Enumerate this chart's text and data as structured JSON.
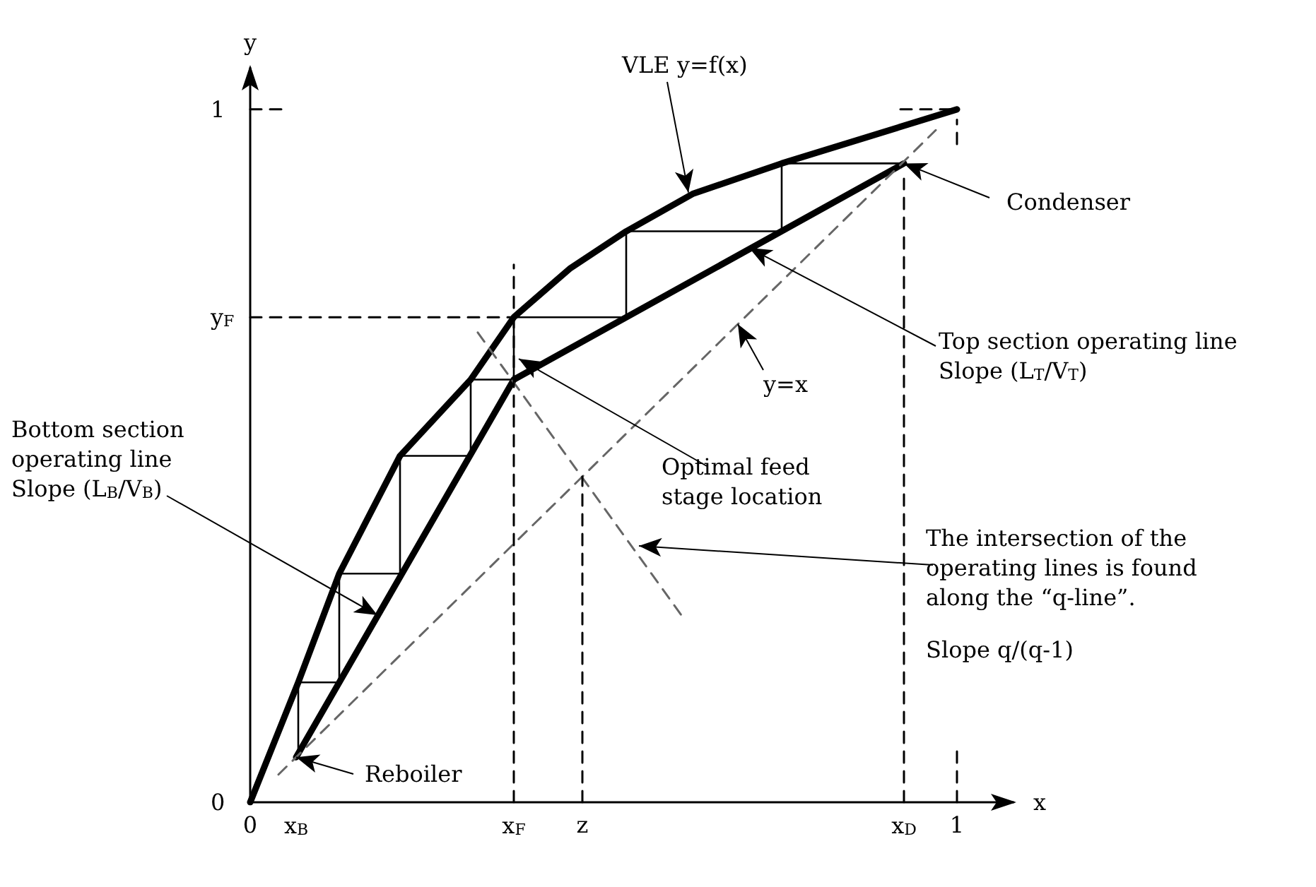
{
  "chart_data": {
    "type": "line",
    "xlabel": "x",
    "ylabel": "y",
    "xlim": [
      0,
      1.08
    ],
    "ylim": [
      0,
      1.06
    ],
    "xticks": [
      {
        "value": 0,
        "label": "0"
      },
      {
        "value": 0.065,
        "label": "x$_{B}$"
      },
      {
        "value": 0.373,
        "label": "x$_{F}$"
      },
      {
        "value": 0.47,
        "label": "z"
      },
      {
        "value": 0.925,
        "label": "x$_{D}$"
      },
      {
        "value": 1,
        "label": "1"
      }
    ],
    "yticks": [
      {
        "value": 0,
        "label": "0"
      },
      {
        "value": 0.7,
        "label": "y$_{F}$"
      },
      {
        "value": 1,
        "label": "1"
      }
    ],
    "grid": false,
    "marker": "none",
    "series": [
      {
        "color": "#000000",
        "line_style": "solid",
        "x": [
          0,
          0.068,
          0.126,
          0.212,
          0.312,
          0.373,
          0.452,
          0.532,
          0.626,
          0.752,
          1
        ],
        "values": [
          0,
          0.173,
          0.33,
          0.5,
          0.61,
          0.7,
          0.77,
          0.824,
          0.878,
          0.922,
          1
        ]
      },
      {
        "color": "#000000",
        "line_style": "solid",
        "x": [
          0.065,
          0.373
        ],
        "values": [
          0.065,
          0.61
        ]
      },
      {
        "color": "#000000",
        "line_style": "solid",
        "x": [
          0.373,
          0.925
        ],
        "values": [
          0.61,
          0.922
        ]
      },
      {
        "color": "#000000",
        "line_style": "solid",
        "x": [
          0.925,
          0.752,
          0.752,
          0.532,
          0.532,
          0.373,
          0.373,
          0.312,
          0.312,
          0.212,
          0.212,
          0.126,
          0.126,
          0.068,
          0.068
        ],
        "values": [
          0.922,
          0.922,
          0.824,
          0.824,
          0.7,
          0.7,
          0.61,
          0.61,
          0.5,
          0.5,
          0.33,
          0.33,
          0.173,
          0.173,
          0.065
        ]
      },
      {
        "color": "#666666",
        "line_style": "dashed",
        "x": [
          0.04,
          0.97
        ],
        "values": [
          0.04,
          0.97
        ]
      },
      {
        "color": "#666666",
        "line_style": "dashed",
        "x": [
          0.322,
          0.61
        ],
        "values": [
          0.678,
          0.27
        ]
      },
      {
        "color": "#000000",
        "line_style": "dashed",
        "x": [
          0,
          0.373
        ],
        "values": [
          0.7,
          0.7
        ]
      },
      {
        "color": "#000000",
        "line_style": "dashed",
        "x": [
          0.373,
          0.373
        ],
        "values": [
          0,
          0.776
        ]
      },
      {
        "color": "#000000",
        "line_style": "dashed",
        "x": [
          0.47,
          0.47
        ],
        "values": [
          0,
          0.47
        ]
      },
      {
        "color": "#000000",
        "line_style": "dashed",
        "x": [
          0.925,
          0.925
        ],
        "values": [
          0,
          0.9
        ]
      },
      {
        "color": "#000000",
        "line_style": "dashed",
        "x": [
          1,
          1
        ],
        "values": [
          0,
          0.08
        ]
      },
      {
        "color": "#000000",
        "line_style": "dashed",
        "x": [
          1,
          1
        ],
        "values": [
          0.95,
          0.985
        ]
      },
      {
        "color": "#000000",
        "line_style": "dashed",
        "x": [
          0,
          0.05
        ],
        "values": [
          1,
          1
        ]
      },
      {
        "color": "#000000",
        "line_style": "dashed",
        "x": [
          0.92,
          1
        ],
        "values": [
          1,
          1
        ]
      }
    ],
    "annotations": [
      {
        "text": "VLE y=f(x)",
        "x": 0.62,
        "y": 0.88
      },
      {
        "text": "Condenser",
        "x": 0.925,
        "y": 0.922
      },
      {
        "text": "Top section operating line\nSlope (L$_{T}$/V$_{T}$)",
        "x": 0.706,
        "y": 0.8
      },
      {
        "text": "y=x",
        "x": 0.69,
        "y": 0.69
      },
      {
        "text": "Optimal feed\nstage location",
        "x": 0.38,
        "y": 0.64
      },
      {
        "text": "Bottom section\noperating line\nSlope (L$_{B}$/V$_{B}$)",
        "x": 0.18,
        "y": 0.27
      },
      {
        "text": "Reboiler",
        "x": 0.065,
        "y": 0.065
      },
      {
        "text": "The intersection of the\noperating lines is found\nalong the “q-line”.",
        "x": 0.55,
        "y": 0.37
      },
      "Slope q/(q-1)"
    ]
  }
}
